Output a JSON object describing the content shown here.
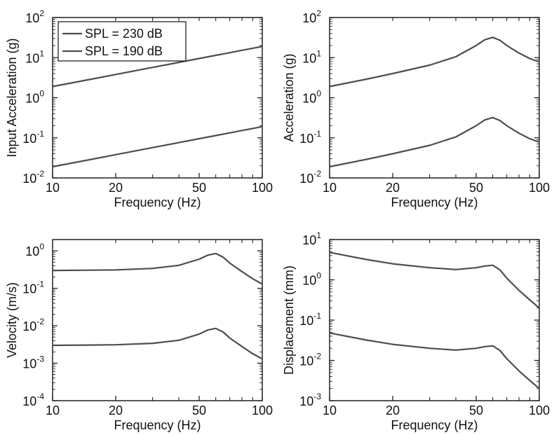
{
  "chart_data": [
    {
      "type": "line",
      "xlabel": "Frequency (Hz)",
      "ylabel": "Input Acceleration (g)",
      "x_scale": "log",
      "y_scale": "log",
      "xlim": [
        10,
        100
      ],
      "ylim": [
        0.01,
        100
      ],
      "x_ticks": [
        10,
        20,
        50,
        100
      ],
      "x_tick_labels": [
        "10",
        "20",
        "50",
        "100"
      ],
      "y_ticks": [
        0.01,
        0.1,
        1,
        10,
        100
      ],
      "y_tick_labels": [
        [
          "10",
          "-2"
        ],
        [
          "10",
          "-1"
        ],
        [
          "10",
          "0"
        ],
        [
          "10",
          "1"
        ],
        [
          "10",
          "2"
        ]
      ],
      "grid": false,
      "legend_position": "top-left",
      "x": [
        10,
        15,
        20,
        30,
        40,
        50,
        60,
        70,
        80,
        90,
        100
      ],
      "series": [
        {
          "name": "SPL = 230 dB",
          "values": [
            1.9,
            2.85,
            3.8,
            5.7,
            7.6,
            9.5,
            11.4,
            13.3,
            15.2,
            17.1,
            19.0
          ]
        },
        {
          "name": "SPL = 190 dB",
          "values": [
            0.019,
            0.0285,
            0.038,
            0.057,
            0.076,
            0.095,
            0.114,
            0.133,
            0.152,
            0.171,
            0.19
          ]
        }
      ]
    },
    {
      "type": "line",
      "xlabel": "Frequency (Hz)",
      "ylabel": "Acceleration (g)",
      "x_scale": "log",
      "y_scale": "log",
      "xlim": [
        10,
        100
      ],
      "ylim": [
        0.01,
        100
      ],
      "x_ticks": [
        10,
        20,
        50,
        100
      ],
      "x_tick_labels": [
        "10",
        "20",
        "50",
        "100"
      ],
      "y_ticks": [
        0.01,
        0.1,
        1,
        10,
        100
      ],
      "y_tick_labels": [
        [
          "10",
          "-2"
        ],
        [
          "10",
          "-1"
        ],
        [
          "10",
          "0"
        ],
        [
          "10",
          "1"
        ],
        [
          "10",
          "2"
        ]
      ],
      "grid": false,
      "x": [
        10,
        15,
        20,
        30,
        40,
        50,
        55,
        60,
        65,
        70,
        80,
        90,
        100
      ],
      "series": [
        {
          "name": "",
          "values": [
            1.9,
            2.9,
            4.0,
            6.5,
            10.5,
            20,
            28,
            32,
            27,
            20,
            13,
            9.5,
            7.8
          ]
        },
        {
          "name": "",
          "values": [
            0.019,
            0.029,
            0.04,
            0.065,
            0.105,
            0.2,
            0.28,
            0.32,
            0.27,
            0.2,
            0.13,
            0.095,
            0.078
          ]
        }
      ]
    },
    {
      "type": "line",
      "xlabel": "Frequency (Hz)",
      "ylabel": "Velocity (m/s)",
      "x_scale": "log",
      "y_scale": "log",
      "xlim": [
        10,
        100
      ],
      "ylim": [
        0.0001,
        2
      ],
      "x_ticks": [
        10,
        20,
        50,
        100
      ],
      "x_tick_labels": [
        "10",
        "20",
        "50",
        "100"
      ],
      "y_ticks": [
        0.0001,
        0.001,
        0.01,
        0.1,
        1
      ],
      "y_tick_labels": [
        [
          "10",
          "-4"
        ],
        [
          "10",
          "-3"
        ],
        [
          "10",
          "-2"
        ],
        [
          "10",
          "-1"
        ],
        [
          "10",
          "0"
        ]
      ],
      "grid": false,
      "x": [
        10,
        15,
        20,
        30,
        40,
        50,
        55,
        60,
        65,
        70,
        80,
        90,
        100
      ],
      "series": [
        {
          "name": "",
          "values": [
            0.3,
            0.305,
            0.31,
            0.34,
            0.41,
            0.6,
            0.77,
            0.85,
            0.68,
            0.47,
            0.28,
            0.18,
            0.13
          ]
        },
        {
          "name": "",
          "values": [
            0.003,
            0.00305,
            0.0031,
            0.0034,
            0.0041,
            0.006,
            0.0077,
            0.0085,
            0.0068,
            0.0047,
            0.0028,
            0.0018,
            0.0013
          ]
        }
      ]
    },
    {
      "type": "line",
      "xlabel": "Frequency (Hz)",
      "ylabel": "Displacement (mm)",
      "x_scale": "log",
      "y_scale": "log",
      "xlim": [
        10,
        100
      ],
      "ylim": [
        0.001,
        10
      ],
      "x_ticks": [
        10,
        20,
        50,
        100
      ],
      "x_tick_labels": [
        "10",
        "20",
        "50",
        "100"
      ],
      "y_ticks": [
        0.001,
        0.01,
        0.1,
        1,
        10
      ],
      "y_tick_labels": [
        [
          "10",
          "-3"
        ],
        [
          "10",
          "-2"
        ],
        [
          "10",
          "-1"
        ],
        [
          "10",
          "0"
        ],
        [
          "10",
          "1"
        ]
      ],
      "grid": false,
      "x": [
        10,
        15,
        20,
        30,
        40,
        50,
        55,
        60,
        65,
        70,
        80,
        90,
        100
      ],
      "series": [
        {
          "name": "",
          "values": [
            4.8,
            3.2,
            2.5,
            2.0,
            1.8,
            2.0,
            2.2,
            2.3,
            1.75,
            1.1,
            0.55,
            0.32,
            0.2
          ]
        },
        {
          "name": "",
          "values": [
            0.048,
            0.032,
            0.025,
            0.02,
            0.018,
            0.02,
            0.022,
            0.023,
            0.0175,
            0.011,
            0.0055,
            0.0032,
            0.002
          ]
        }
      ]
    }
  ],
  "colors": {
    "line": "#4d4d4d",
    "axes": "#111111",
    "background": "#ffffff"
  }
}
